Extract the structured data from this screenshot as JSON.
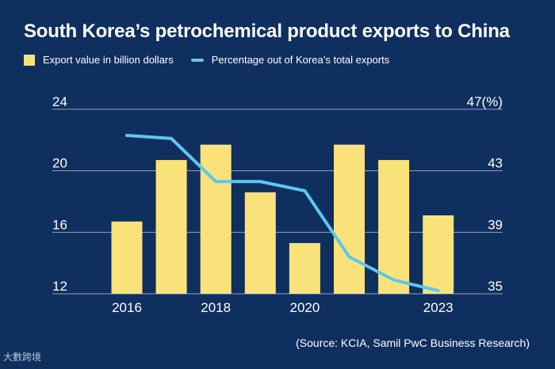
{
  "chart_data": {
    "type": "bar",
    "title": "South Korea’s petrochemical product exports to China",
    "x": [
      2016,
      2017,
      2018,
      2019,
      2020,
      2021,
      2022,
      2023
    ],
    "x_tick_labels": [
      "2016",
      "2018",
      "2020",
      "2023"
    ],
    "x_tick_values": [
      2016,
      2018,
      2020,
      2023
    ],
    "series": [
      {
        "name": "Export value in billion dollars",
        "type": "bar",
        "axis": "left",
        "values": [
          16.7,
          20.7,
          21.7,
          18.6,
          15.3,
          21.7,
          20.7,
          17.1
        ]
      },
      {
        "name": "Percentage out of Korea’s total exports",
        "type": "line",
        "axis": "right",
        "values": [
          45.3,
          45.1,
          42.3,
          42.3,
          41.7,
          37.4,
          35.9,
          35.2
        ]
      }
    ],
    "y_left": {
      "ticks": [
        "24",
        "20",
        "16",
        "12"
      ],
      "tick_values": [
        24,
        20,
        16,
        12
      ],
      "lim": [
        12,
        24
      ]
    },
    "y_right": {
      "ticks": [
        "47(%)",
        "43",
        "39",
        "35"
      ],
      "tick_values": [
        47,
        43,
        39,
        35
      ],
      "lim": [
        35,
        47
      ]
    },
    "source": "(Source: KCIA, Samil PwC Business Research)",
    "grid": true
  },
  "colors": {
    "background": "#0f2f5f",
    "bar": "#fae27a",
    "line": "#5ec6ef",
    "grid": "#8fa2c2",
    "text": "#ffffff"
  },
  "watermark": "大數跨境"
}
